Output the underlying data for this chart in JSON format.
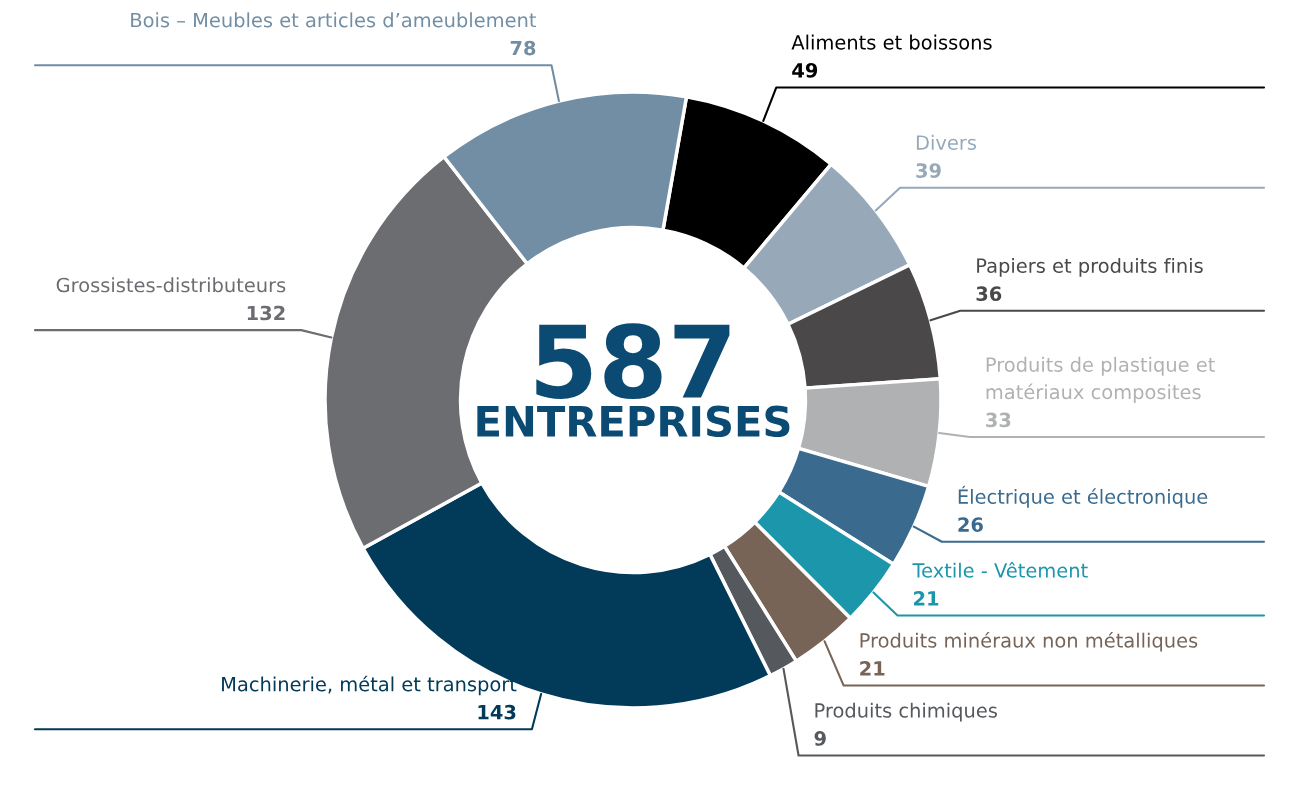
{
  "chart_data": {
    "type": "donut",
    "categories": [
      "Aliments et boissons",
      "Divers",
      "Papiers et produits finis",
      "Produits de plastique et\nmatériaux composites",
      "Électrique et électronique",
      "Textile - Vêtement",
      "Produits minéraux non métalliques",
      "Produits chimiques",
      "Machinerie, métal et transport",
      "Grossistes-distributeurs",
      "Bois – Meubles et articles d’ameublement"
    ],
    "values": [
      49,
      39,
      36,
      33,
      26,
      21,
      21,
      9,
      143,
      132,
      78
    ],
    "colors": [
      "#000000",
      "#97a9b8",
      "#4a4849",
      "#afb1b3",
      "#3a6b8f",
      "#1c96aa",
      "#776457",
      "#55585c",
      "#023a5a",
      "#6c6d71",
      "#728ea4"
    ],
    "data_labels": true,
    "annotations": [
      "587",
      "ENTREPRISES"
    ]
  }
}
